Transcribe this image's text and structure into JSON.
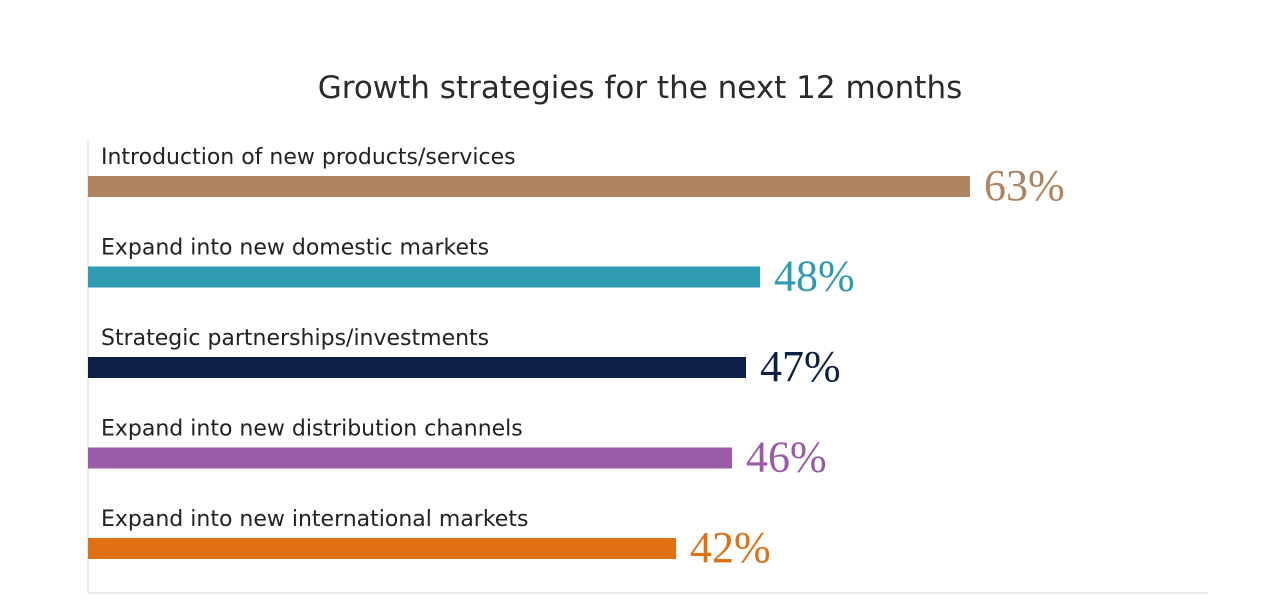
{
  "chart_data": {
    "type": "bar",
    "orientation": "horizontal",
    "title": "Growth strategies for the next 12 months",
    "xlabel": "",
    "ylabel": "",
    "xlim": [
      0,
      80
    ],
    "grid": false,
    "value_suffix": "%",
    "categories": [
      "Introduction of new products/services",
      "Expand into new domestic markets",
      "Strategic partnerships/investments",
      "Expand into new distribution channels",
      "Expand into new international markets"
    ],
    "values": [
      63,
      48,
      47,
      46,
      42
    ],
    "value_labels": [
      "63%",
      "48%",
      "47%",
      "46%",
      "42%"
    ],
    "colors": [
      "#b08460",
      "#2e9bb3",
      "#0c1f45",
      "#9a5ca8",
      "#e07012"
    ]
  }
}
